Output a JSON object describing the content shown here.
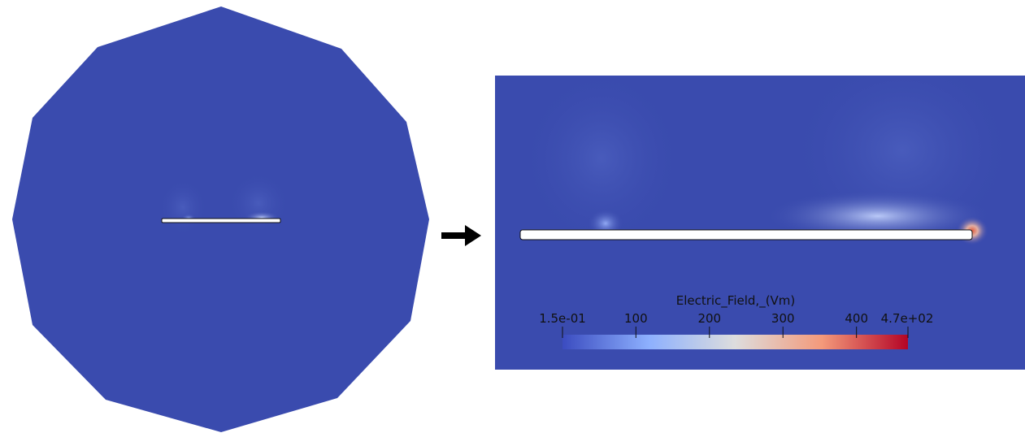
{
  "colorbar": {
    "title": "Electric_Field,_(Vm)",
    "min_label": "1.5e-01",
    "max_label": "4.7e+02",
    "ticks": [
      "100",
      "200",
      "300",
      "400"
    ],
    "range": [
      0.15,
      470
    ],
    "tick_values": [
      100,
      200,
      300,
      400
    ],
    "colors": {
      "low": "#3b4cc0",
      "mid_low": "#8db0fe",
      "mid": "#dddddd",
      "mid_high": "#f49a7b",
      "high": "#b40426"
    }
  },
  "colors": {
    "background_field": "#3a4bae",
    "plate": "#ffffff",
    "plate_outline": "#111111",
    "arrow": "#000000"
  },
  "icons": {
    "arrow": "right-arrow-icon"
  }
}
